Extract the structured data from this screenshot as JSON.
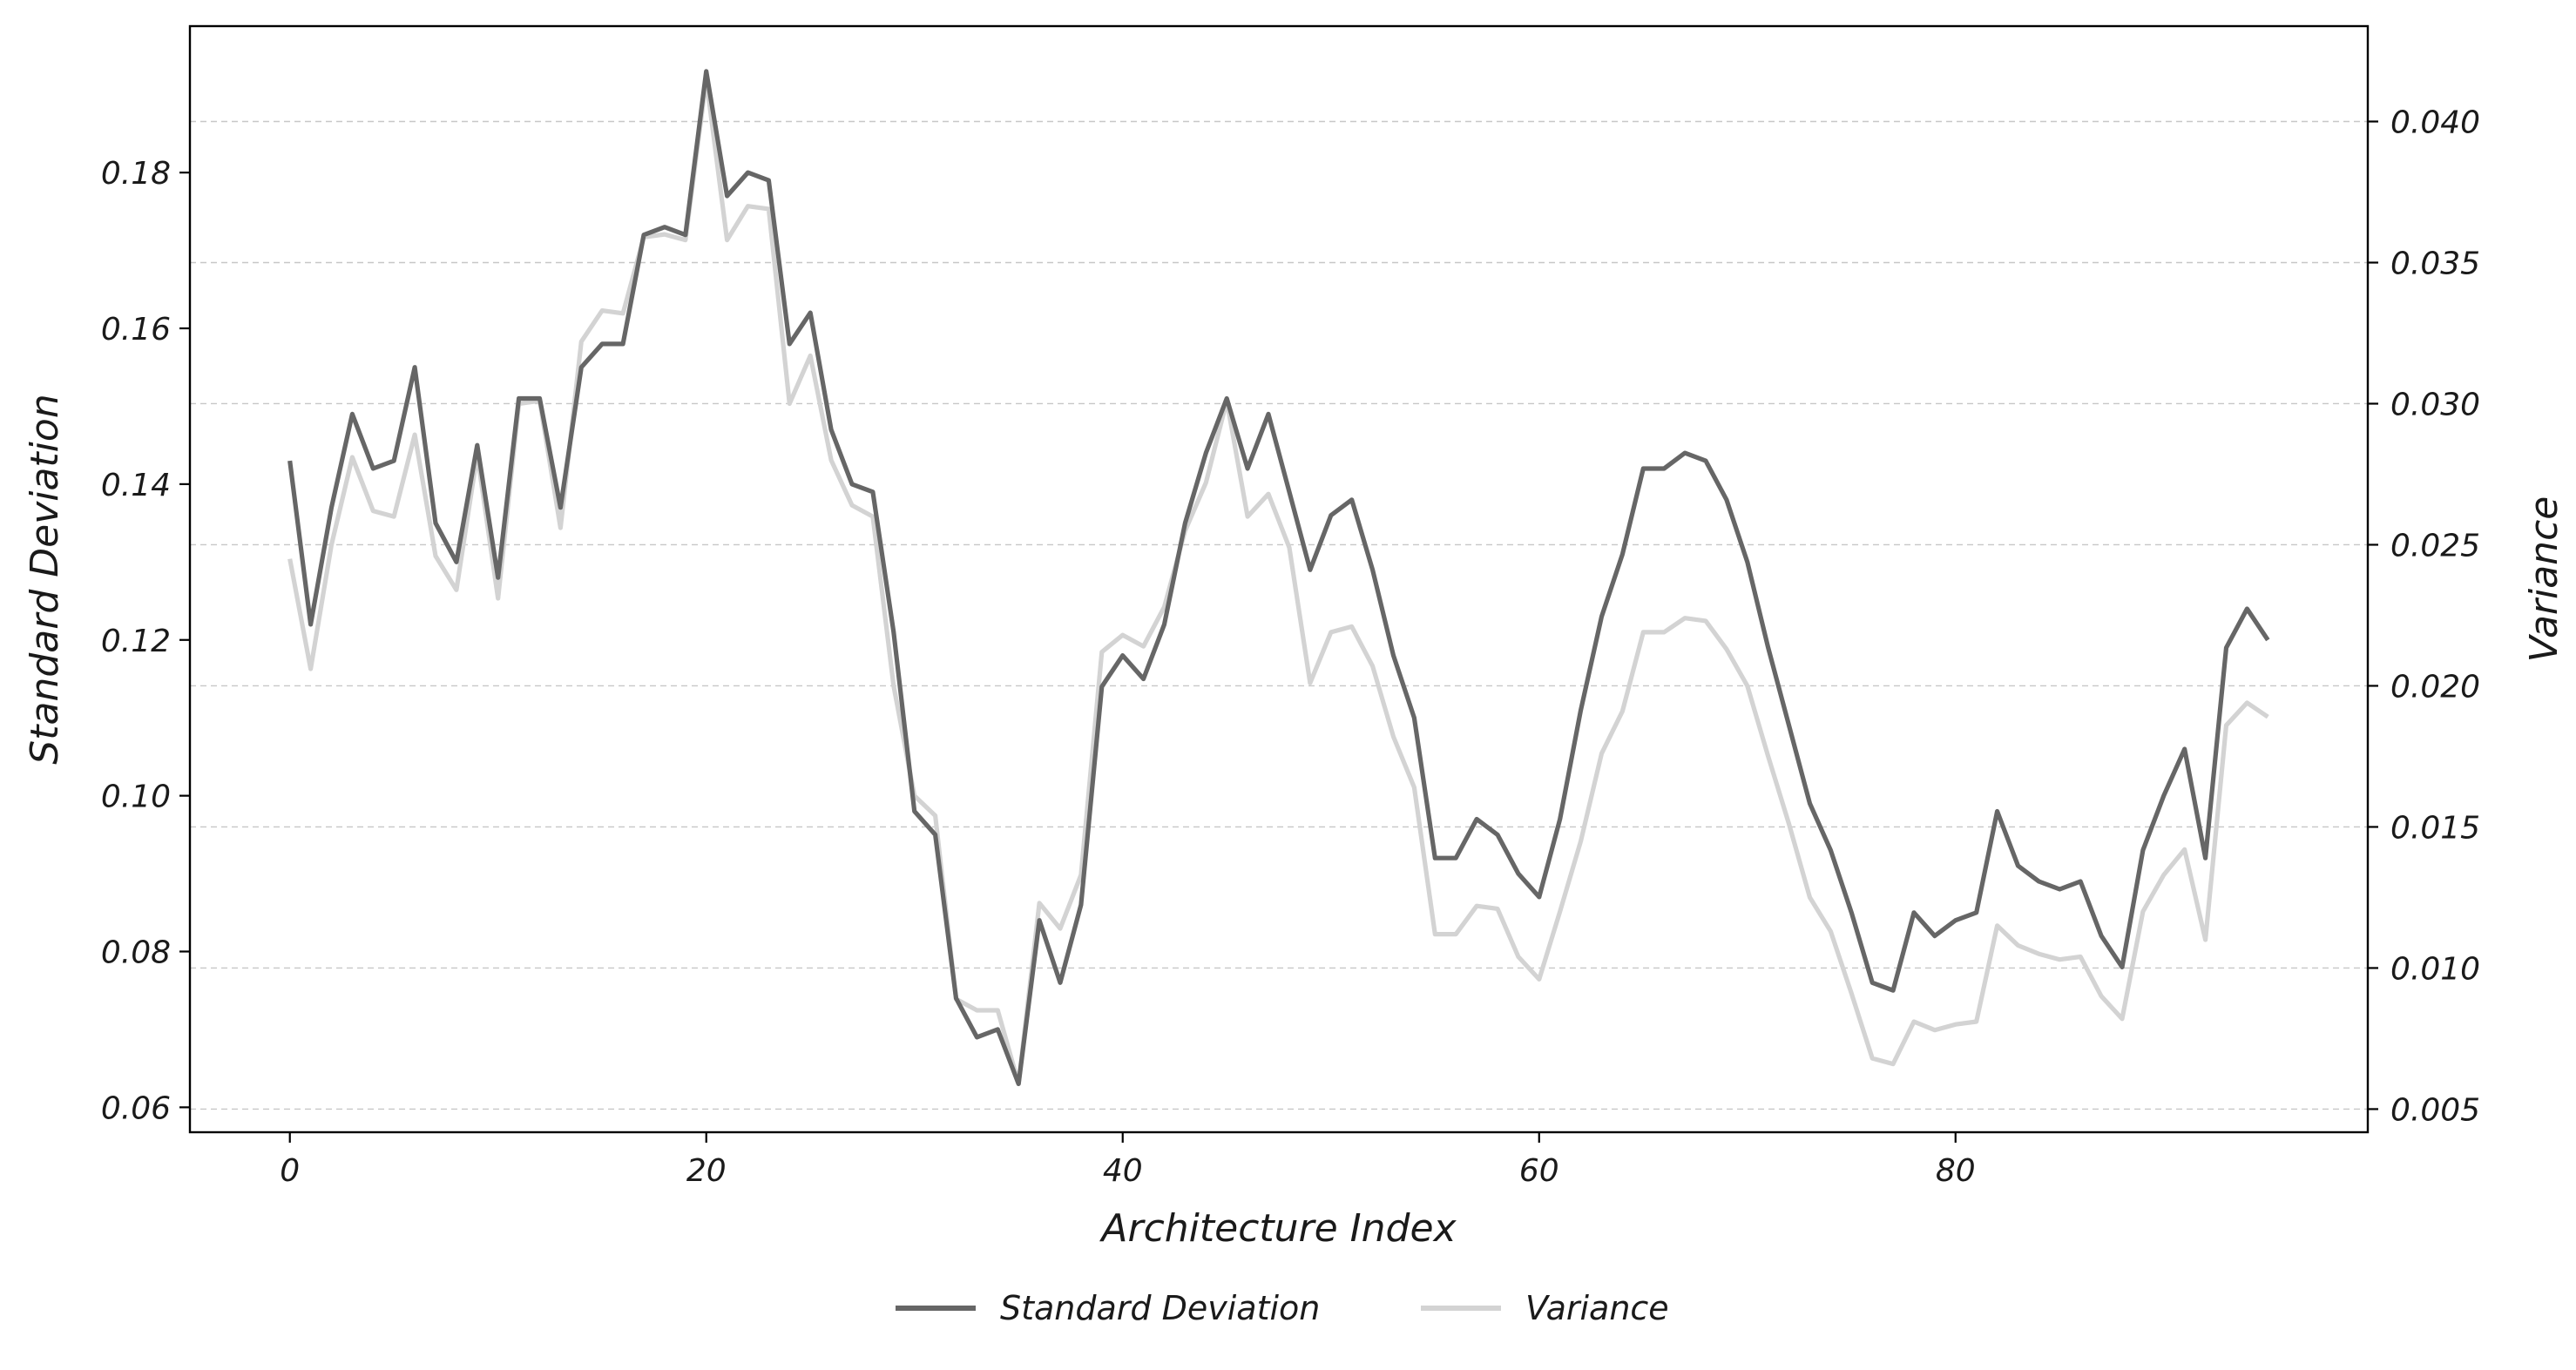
{
  "chart_data": {
    "type": "line",
    "title": "",
    "xlabel": "Architecture Index",
    "ylabel": "Standard Deviation",
    "y2label": "Variance",
    "xlim": [
      -4.8,
      99.8
    ],
    "ylim": [
      0.0568,
      0.1988
    ],
    "y2lim": [
      0.00418,
      0.04338
    ],
    "x_ticks": [
      0,
      20,
      40,
      60,
      80
    ],
    "y_ticks": [
      0.06,
      0.08,
      0.1,
      0.12,
      0.14,
      0.16,
      0.18
    ],
    "y_tick_labels": [
      "0.06",
      "0.08",
      "0.10",
      "0.12",
      "0.14",
      "0.16",
      "0.18"
    ],
    "y2_ticks": [
      0.005,
      0.01,
      0.015,
      0.02,
      0.025,
      0.03,
      0.035,
      0.04
    ],
    "y2_tick_labels": [
      "0.005",
      "0.010",
      "0.015",
      "0.020",
      "0.025",
      "0.030",
      "0.035",
      "0.040"
    ],
    "grid": "horizontal-dashed (right axis)",
    "legend_placement": "bottom-center",
    "x": [
      0,
      1,
      2,
      3,
      4,
      5,
      6,
      7,
      8,
      9,
      10,
      11,
      12,
      13,
      14,
      15,
      16,
      17,
      18,
      19,
      20,
      21,
      22,
      23,
      24,
      25,
      26,
      27,
      28,
      29,
      30,
      31,
      32,
      33,
      34,
      35,
      36,
      37,
      38,
      39,
      40,
      41,
      42,
      43,
      44,
      45,
      46,
      47,
      48,
      49,
      50,
      51,
      52,
      53,
      54,
      55,
      56,
      57,
      58,
      59,
      60,
      61,
      62,
      63,
      64,
      65,
      66,
      67,
      68,
      69,
      70,
      71,
      72,
      73,
      74,
      75,
      76,
      77,
      78,
      79,
      80,
      81,
      82,
      83,
      84,
      85,
      86,
      87,
      88,
      89,
      90,
      91,
      92,
      93,
      94,
      95
    ],
    "series": [
      {
        "name": "Standard Deviation",
        "axis": "left",
        "color": "#666666",
        "values": [
          0.143,
          0.122,
          0.137,
          0.149,
          0.142,
          0.143,
          0.155,
          0.135,
          0.13,
          0.145,
          0.128,
          0.151,
          0.151,
          0.137,
          0.155,
          0.158,
          0.158,
          0.172,
          0.173,
          0.172,
          0.193,
          0.177,
          0.18,
          0.179,
          0.158,
          0.162,
          0.147,
          0.14,
          0.139,
          0.121,
          0.098,
          0.095,
          0.074,
          0.069,
          0.07,
          0.063,
          0.084,
          0.076,
          0.086,
          0.114,
          0.118,
          0.115,
          0.122,
          0.135,
          0.144,
          0.151,
          0.142,
          0.149,
          0.139,
          0.129,
          0.136,
          0.138,
          0.129,
          0.118,
          0.11,
          0.092,
          0.092,
          0.097,
          0.095,
          0.09,
          0.087,
          0.097,
          0.111,
          0.123,
          0.131,
          0.142,
          0.142,
          0.144,
          0.143,
          0.138,
          0.13,
          0.119,
          0.109,
          0.099,
          0.093,
          0.085,
          0.076,
          0.075,
          0.085,
          0.082,
          0.084,
          0.085,
          0.098,
          0.091,
          0.089,
          0.088,
          0.089,
          0.082,
          0.078,
          0.093,
          0.1,
          0.106,
          0.092,
          0.119,
          0.124,
          0.12
        ]
      },
      {
        "name": "Variance",
        "axis": "right",
        "color": "#d3d3d3",
        "values": [
          0.0245,
          0.0206,
          0.025,
          0.0281,
          0.0262,
          0.026,
          0.0289,
          0.0246,
          0.0234,
          0.0282,
          0.0231,
          0.03,
          0.0301,
          0.0256,
          0.0322,
          0.0333,
          0.0332,
          0.0359,
          0.036,
          0.0358,
          0.0415,
          0.0358,
          0.037,
          0.0369,
          0.03,
          0.0317,
          0.028,
          0.0264,
          0.026,
          0.02,
          0.0161,
          0.0154,
          0.0089,
          0.0085,
          0.0085,
          0.0059,
          0.0123,
          0.0114,
          0.0133,
          0.0212,
          0.0218,
          0.0214,
          0.0228,
          0.0255,
          0.0272,
          0.0301,
          0.026,
          0.0268,
          0.0249,
          0.0201,
          0.0219,
          0.0221,
          0.0207,
          0.0182,
          0.0164,
          0.0112,
          0.0112,
          0.0122,
          0.0121,
          0.0104,
          0.0096,
          0.012,
          0.0145,
          0.0176,
          0.0191,
          0.0219,
          0.0219,
          0.0224,
          0.0223,
          0.0213,
          0.02,
          0.0175,
          0.0151,
          0.0125,
          0.0113,
          0.0091,
          0.0068,
          0.0066,
          0.0081,
          0.0078,
          0.008,
          0.0081,
          0.0115,
          0.0108,
          0.0105,
          0.0103,
          0.0104,
          0.009,
          0.0082,
          0.012,
          0.0133,
          0.0142,
          0.011,
          0.0186,
          0.0194,
          0.0189
        ]
      }
    ]
  }
}
